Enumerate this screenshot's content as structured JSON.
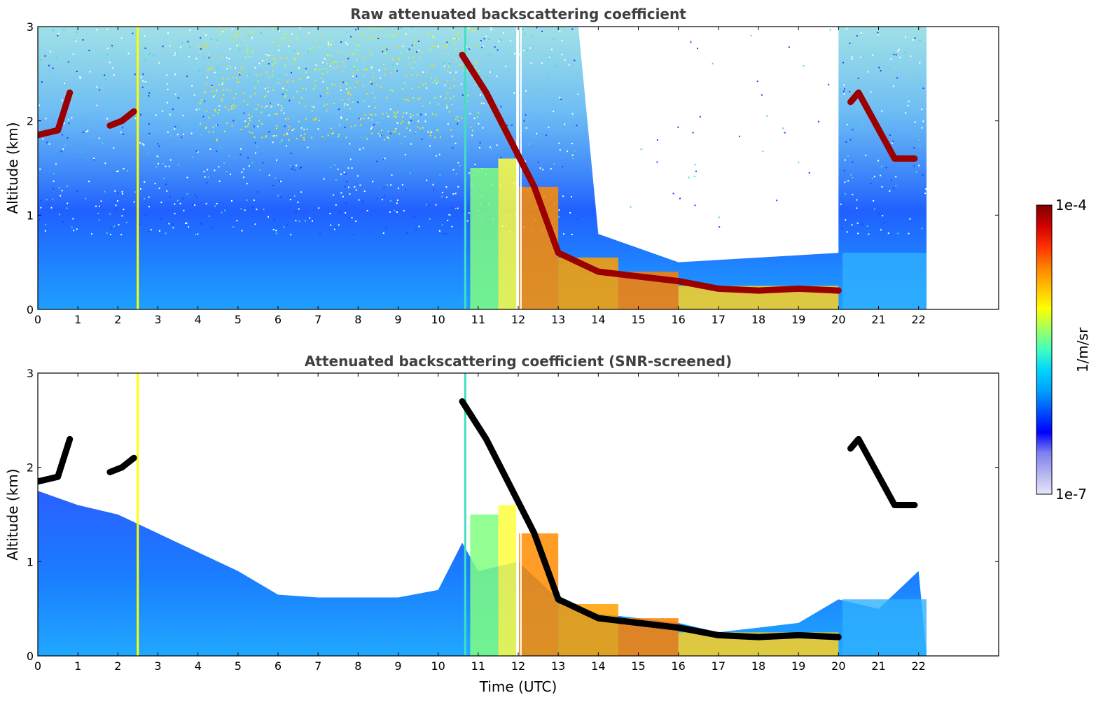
{
  "chart_data": [
    {
      "type": "heatmap",
      "title": "Raw attenuated backscattering coefficient",
      "xlabel": "",
      "ylabel": "Altitude (km)",
      "xlim": [
        0,
        24
      ],
      "ylim": [
        0,
        3
      ],
      "x_ticks": [
        "0",
        "1",
        "2",
        "3",
        "4",
        "5",
        "6",
        "7",
        "8",
        "9",
        "10",
        "11",
        "12",
        "13",
        "14",
        "15",
        "16",
        "17",
        "18",
        "19",
        "20",
        "21",
        "22"
      ],
      "y_ticks": [
        "0",
        "1",
        "2",
        "3"
      ],
      "data_end_hour": 22.2,
      "cloud_layers": [
        {
          "name": "early-cloud",
          "points": [
            [
              0,
              1.85
            ],
            [
              0.5,
              1.9
            ],
            [
              0.8,
              2.3
            ]
          ]
        },
        {
          "name": "cloud-2h",
          "points": [
            [
              1.8,
              1.95
            ],
            [
              2.1,
              2.0
            ],
            [
              2.4,
              2.1
            ]
          ]
        },
        {
          "name": "descending-cloud",
          "points": [
            [
              10.6,
              2.7
            ],
            [
              11.2,
              2.3
            ],
            [
              11.8,
              1.8
            ],
            [
              12.4,
              1.3
            ],
            [
              13.0,
              0.6
            ],
            [
              14.0,
              0.4
            ],
            [
              15.0,
              0.35
            ],
            [
              16.0,
              0.3
            ],
            [
              17.0,
              0.22
            ],
            [
              18.0,
              0.2
            ],
            [
              19.0,
              0.22
            ],
            [
              20.0,
              0.2
            ]
          ]
        },
        {
          "name": "late-cloud",
          "points": [
            [
              20.3,
              2.2
            ],
            [
              20.5,
              2.3
            ],
            [
              21.4,
              1.6
            ],
            [
              21.9,
              1.6
            ]
          ]
        }
      ]
    },
    {
      "type": "heatmap",
      "title": "Attenuated backscattering coefficient (SNR-screened)",
      "xlabel": "Time (UTC)",
      "ylabel": "Altitude (km)",
      "xlim": [
        0,
        24
      ],
      "ylim": [
        0,
        3
      ],
      "x_ticks": [
        "0",
        "1",
        "2",
        "3",
        "4",
        "5",
        "6",
        "7",
        "8",
        "9",
        "10",
        "11",
        "12",
        "13",
        "14",
        "15",
        "16",
        "17",
        "18",
        "19",
        "20",
        "21",
        "22"
      ],
      "y_ticks": [
        "0",
        "1",
        "2",
        "3"
      ],
      "data_end_hour": 22.2,
      "screen_top_km": [
        [
          0,
          1.75
        ],
        [
          1,
          1.6
        ],
        [
          2,
          1.5
        ],
        [
          3,
          1.3
        ],
        [
          4,
          1.1
        ],
        [
          5,
          0.9
        ],
        [
          6,
          0.65
        ],
        [
          7,
          0.62
        ],
        [
          8,
          0.62
        ],
        [
          9,
          0.62
        ],
        [
          10,
          0.7
        ],
        [
          10.6,
          1.2
        ],
        [
          11,
          0.9
        ],
        [
          12,
          1.0
        ],
        [
          13,
          0.6
        ],
        [
          14,
          0.45
        ],
        [
          15,
          0.4
        ],
        [
          16,
          0.35
        ],
        [
          17,
          0.25
        ],
        [
          18,
          0.3
        ],
        [
          19,
          0.35
        ],
        [
          20,
          0.6
        ],
        [
          21,
          0.5
        ],
        [
          22,
          0.9
        ]
      ]
    }
  ],
  "colorbar": {
    "label": "1/m/sr",
    "max_label": "1e-4",
    "min_label": "1e-7",
    "colors": [
      "#e6e6fa",
      "#b4b4f0",
      "#7f7ff0",
      "#0000ff",
      "#0050ff",
      "#00a0ff",
      "#00d4ff",
      "#40ffc0",
      "#a0ff60",
      "#ffff00",
      "#ffc000",
      "#ff8000",
      "#ff3000",
      "#d00000",
      "#800000"
    ]
  }
}
